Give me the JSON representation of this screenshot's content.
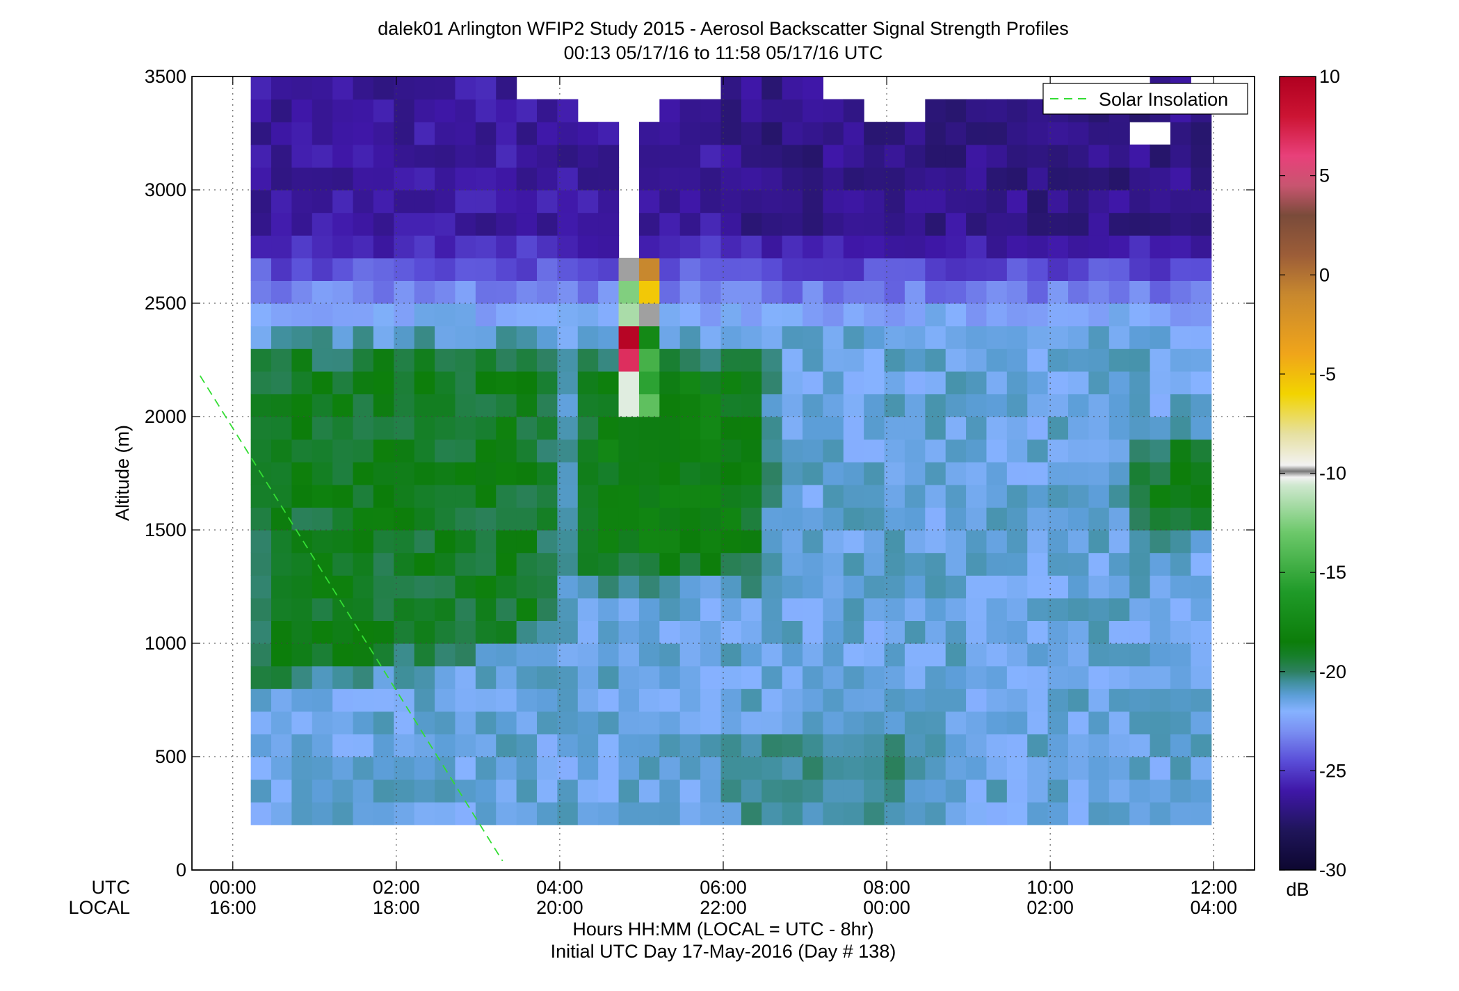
{
  "chart_data": {
    "type": "heatmap",
    "title": "dalek01 Arlington WFIP2 Study 2015 - Aerosol Backscatter Signal Strength Profiles",
    "subtitle": "00:13 05/17/16 to 11:58 05/17/16  UTC",
    "xlabel": "Hours HH:MM  (LOCAL = UTC - 8hr)",
    "xlabel2": "Initial UTC Day 17-May-2016 (Day # 138)",
    "ylabel": "Altitude (m)",
    "row_label_utc": "UTC",
    "row_label_local": "LOCAL",
    "x_range_hours": [
      -0.5,
      12.5
    ],
    "y_range_m": [
      0,
      3500
    ],
    "x_ticks_utc": [
      "00:00",
      "02:00",
      "04:00",
      "06:00",
      "08:00",
      "10:00",
      "12:00"
    ],
    "x_ticks_local": [
      "16:00",
      "18:00",
      "20:00",
      "22:00",
      "00:00",
      "02:00",
      "04:00"
    ],
    "y_ticks": [
      "0",
      "500",
      "1000",
      "1500",
      "2000",
      "2500",
      "3000",
      "3500"
    ],
    "grid": true,
    "legend": {
      "position": "top-right",
      "entries": [
        "Solar Insolation"
      ]
    },
    "colorbar": {
      "label": "dB",
      "range": [
        -30,
        10
      ],
      "ticks": [
        "-30",
        "-25",
        "-20",
        "-15",
        "-10",
        "-5",
        "0",
        "5",
        "10"
      ]
    },
    "data_extent": {
      "time_start_hours": 0.22,
      "time_end_hours": 11.97,
      "alt_min_m": 200,
      "alt_max_m": 3500,
      "time_step_hours": 0.25,
      "alt_step_m": 100
    },
    "solar_insolation_line": {
      "x_hours": [
        -0.4,
        3.3
      ],
      "y_m": [
        2180,
        40
      ]
    },
    "layers_dB": [
      {
        "name": "near-surface",
        "alt_m": [
          200,
          900
        ],
        "value_early": -21.5,
        "value_late": -21.0
      },
      {
        "name": "morning aerosol plume",
        "time_hours": [
          0.2,
          4.0
        ],
        "alt_m": [
          900,
          2300
        ],
        "value": -19.0
      },
      {
        "name": "midday plume",
        "time_hours": [
          4.3,
          6.5
        ],
        "alt_m": [
          1300,
          2200
        ],
        "value": -18.5
      },
      {
        "name": "late-evening low layer",
        "time_hours": [
          11.0,
          12.0
        ],
        "alt_m": [
          1500,
          1900
        ],
        "value": -19.0
      },
      {
        "name": "upper free troposphere",
        "alt_m": [
          2600,
          3500
        ],
        "value": -26.0
      },
      {
        "name": "cloud returns",
        "time_hours": [
          4.8,
          5.1
        ],
        "alt_m": [
          2000,
          2600
        ],
        "value": 2.0
      }
    ]
  },
  "colors": {
    "solar_line": "#33dd33",
    "colormap": [
      "#0d0730",
      "#1f155a",
      "#3f17a8",
      "#5a4ed8",
      "#7a90f2",
      "#86b2ff",
      "#5c9ed8",
      "#3f8f9a",
      "#2d8060",
      "#167f2a",
      "#0c7d0a",
      "#1f9a28",
      "#6cc86a",
      "#cfe8cf",
      "#f2f2f2",
      "#777777",
      "#e6e0a0",
      "#f2d400",
      "#f0a51a",
      "#c8882e",
      "#9c5d38",
      "#7a4b3a",
      "#c85570",
      "#e8407a",
      "#cc1433",
      "#b00020"
    ]
  }
}
